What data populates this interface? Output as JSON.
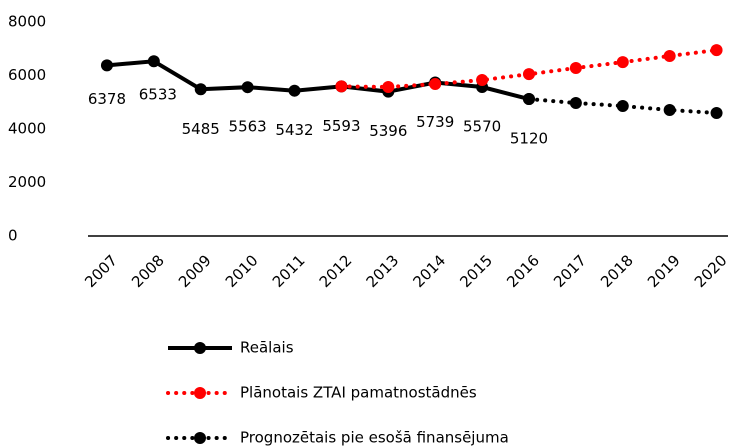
{
  "chart_data": {
    "type": "line",
    "categories": [
      "2007",
      "2008",
      "2009",
      "2010",
      "2011",
      "2012",
      "2013",
      "2014",
      "2015",
      "2016",
      "2017",
      "2018",
      "2019",
      "2020"
    ],
    "series": [
      {
        "name": "Reālais",
        "color": "#000000",
        "style": "solid",
        "show_labels": true,
        "values": [
          6378,
          6533,
          5485,
          5563,
          5432,
          5593,
          5396,
          5739,
          5570,
          5120,
          null,
          null,
          null,
          null
        ]
      },
      {
        "name": "Plānotais ZTAI pamatnostādnēs",
        "color": "#ff0000",
        "style": "dotted",
        "show_labels": false,
        "values": [
          null,
          null,
          null,
          null,
          null,
          5593,
          5570,
          5680,
          5830,
          6050,
          6280,
          6500,
          6730,
          6950
        ]
      },
      {
        "name": "Prognozētais pie esošā finansējuma",
        "color": "#000000",
        "style": "dotted",
        "show_labels": false,
        "values": [
          null,
          null,
          null,
          null,
          null,
          null,
          null,
          null,
          null,
          5120,
          4970,
          4860,
          4710,
          4600
        ]
      }
    ],
    "ylim": [
      0,
      8000
    ],
    "yticks": [
      0,
      2000,
      4000,
      6000,
      8000
    ],
    "grid": false,
    "legend": "bottom"
  }
}
